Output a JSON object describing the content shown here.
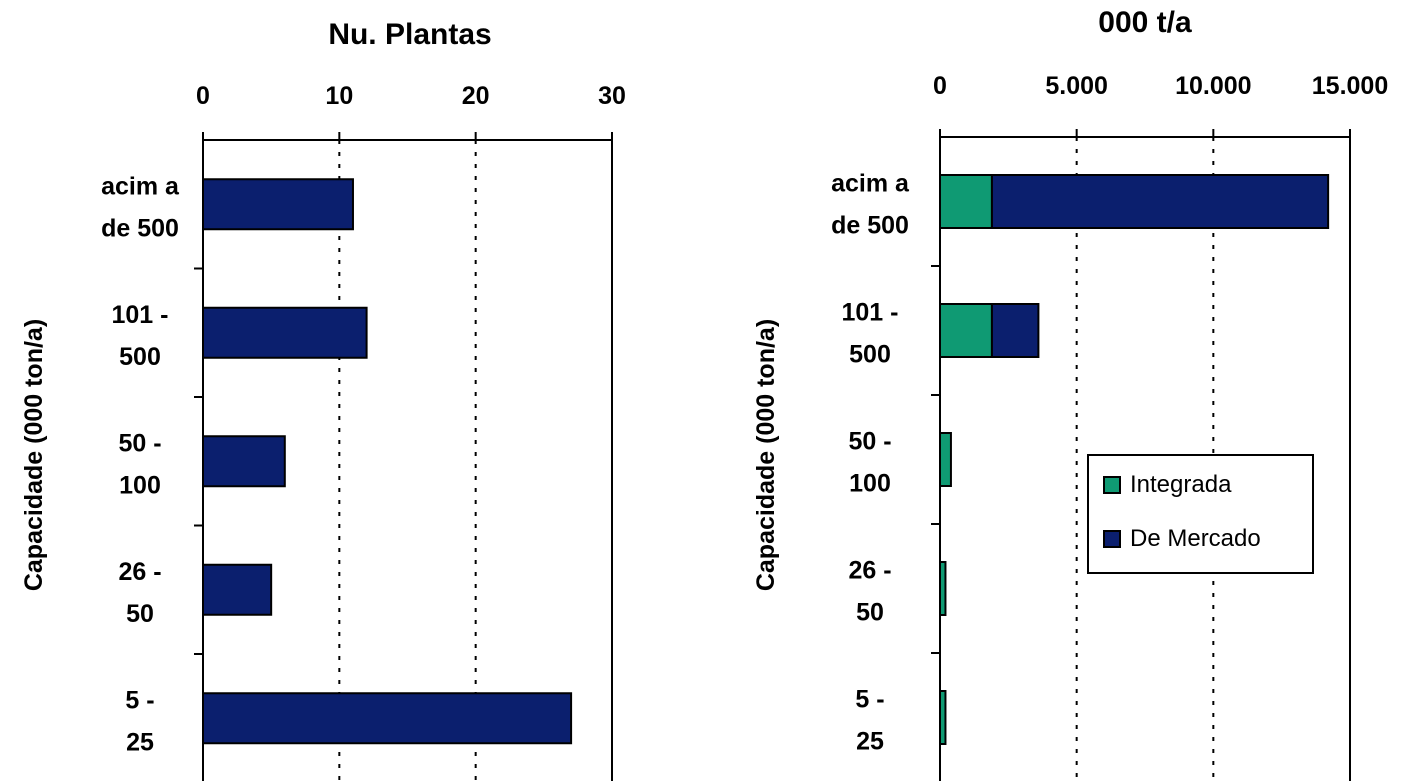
{
  "chart_data": [
    {
      "type": "bar",
      "orientation": "horizontal",
      "title": "Nu. Plantas",
      "ylabel": "Capacidade (000 ton/a)",
      "xlabel": "",
      "xlim": [
        0,
        30
      ],
      "xticks": [
        0,
        10,
        20,
        30
      ],
      "xtick_labels": [
        "0",
        "10",
        "20",
        "30"
      ],
      "axis_position": "top",
      "grid": "vertical dotted",
      "categories": [
        {
          "line1": "acim a",
          "line2": "de  500"
        },
        {
          "line1": "101 -",
          "line2": "500"
        },
        {
          "line1": "50 -",
          "line2": "100"
        },
        {
          "line1": "26 -",
          "line2": "50"
        },
        {
          "line1": "5 -",
          "line2": "25"
        }
      ],
      "values": [
        11,
        12,
        6,
        5,
        27
      ],
      "colors": {
        "bar": "#0b1f6e",
        "edge": "#000000"
      }
    },
    {
      "type": "bar",
      "orientation": "horizontal",
      "stacked": true,
      "title": "000 t/a",
      "ylabel": "Capacidade (000 ton/a)",
      "xlabel": "",
      "xlim": [
        0,
        15000
      ],
      "xticks": [
        0,
        5000,
        10000,
        15000
      ],
      "xtick_labels": [
        "0",
        "5.000",
        "10.000",
        "15.000"
      ],
      "axis_position": "top",
      "grid": "vertical dotted",
      "legend_position": "center-right",
      "categories": [
        {
          "line1": "acim a",
          "line2": "de  500"
        },
        {
          "line1": "101 -",
          "line2": "500"
        },
        {
          "line1": "50 -",
          "line2": "100"
        },
        {
          "line1": "26 -",
          "line2": "50"
        },
        {
          "line1": "5 -",
          "line2": "25"
        }
      ],
      "series": [
        {
          "name": "Integrada",
          "color": "#0f9a73",
          "values": [
            1900,
            1900,
            400,
            200,
            200
          ]
        },
        {
          "name": "De Mercado",
          "color": "#0b1f6e",
          "values": [
            12300,
            1700,
            0,
            0,
            0
          ]
        }
      ]
    }
  ]
}
